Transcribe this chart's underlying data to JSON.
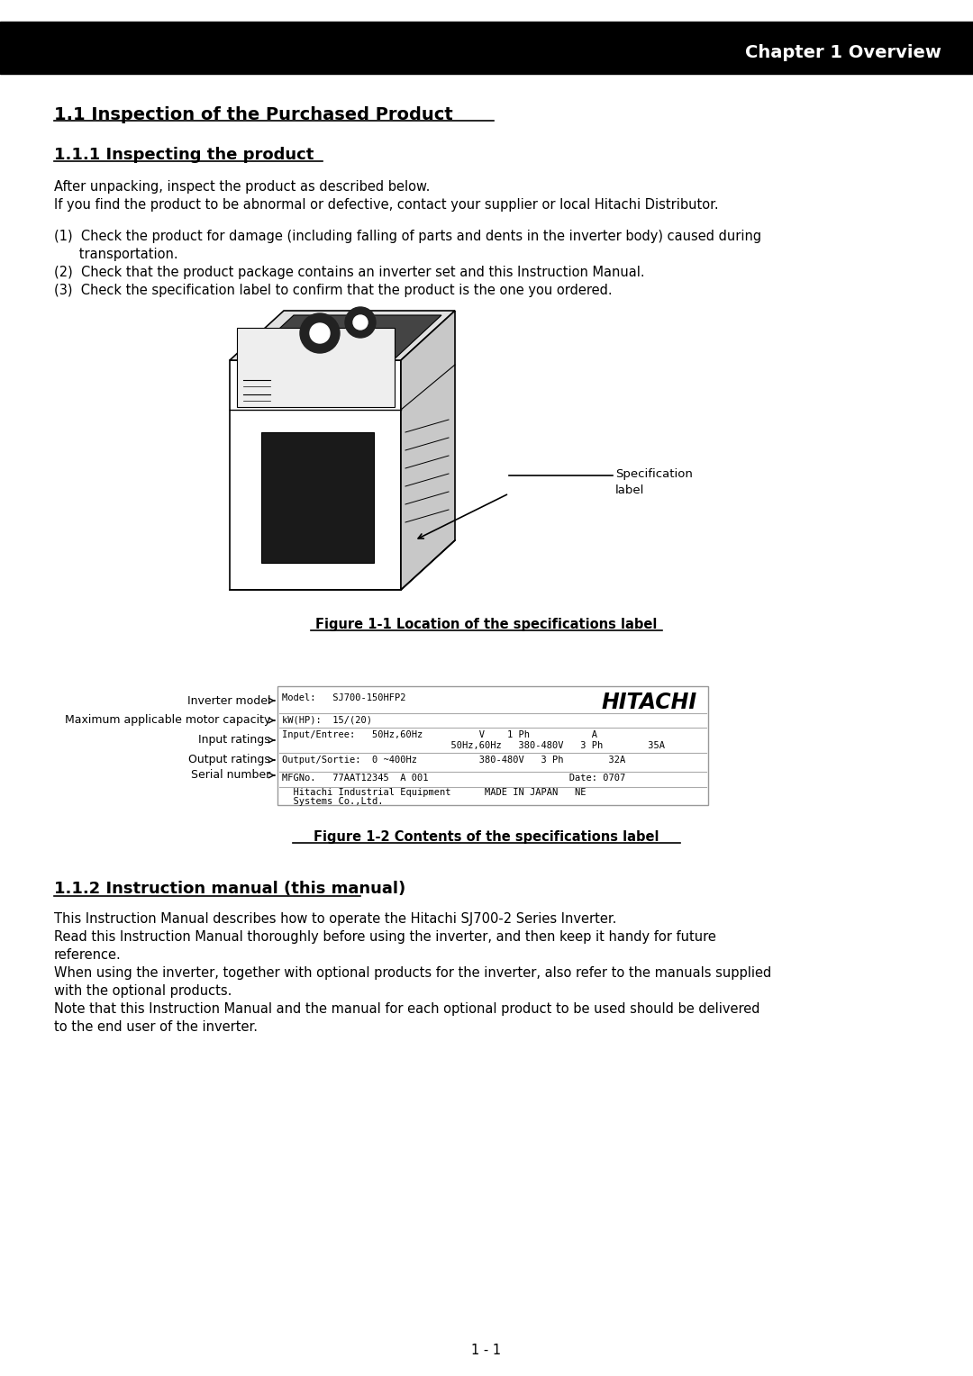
{
  "page_bg": "#ffffff",
  "header_bg": "#000000",
  "header_text": "Chapter 1 Overview",
  "header_text_color": "#ffffff",
  "section_title": "1.1 Inspection of the Purchased Product",
  "subsection_title": "1.1.1 Inspecting the product",
  "body_text_color": "#000000",
  "para1_line1": "After unpacking, inspect the product as described below.",
  "para1_line2": "If you find the product to be abnormal or defective, contact your supplier or local Hitachi Distributor.",
  "list_item1a": "(1)  Check the product for damage (including falling of parts and dents in the inverter body) caused during",
  "list_item1b": "      transportation.",
  "list_item2": "(2)  Check that the product package contains an inverter set and this Instruction Manual.",
  "list_item3": "(3)  Check the specification label to confirm that the product is the one you ordered.",
  "fig1_caption": "Figure 1-1 Location of the specifications label",
  "spec_label_text_line1": "Specification",
  "spec_label_text_line2": "label",
  "fig2_caption": "Figure 1-2 Contents of the specifications label",
  "label_annotations": [
    "Inverter model",
    "Maximum applicable motor capacity",
    "Input ratings",
    "Output ratings",
    "Serial number"
  ],
  "section2_title": "1.1.2 Instruction manual (this manual)",
  "section2_para1": "This Instruction Manual describes how to operate the Hitachi SJ700-2 Series Inverter.",
  "section2_para2a": "Read this Instruction Manual thoroughly before using the inverter, and then keep it handy for future",
  "section2_para2b": "reference.",
  "section2_para3a": "When using the inverter, together with optional products for the inverter, also refer to the manuals supplied",
  "section2_para3b": "with the optional products.",
  "section2_para4a": "Note that this Instruction Manual and the manual for each optional product to be used should be delivered",
  "section2_para4b": "to the end user of the inverter.",
  "page_number": "1 - 1",
  "hitachi_logo_text": "HITACHI",
  "title_fontsize": 13,
  "body_fontsize": 10.5,
  "header_fontsize": 14,
  "mono_fontsize": 7.5,
  "annot_fontsize": 9
}
